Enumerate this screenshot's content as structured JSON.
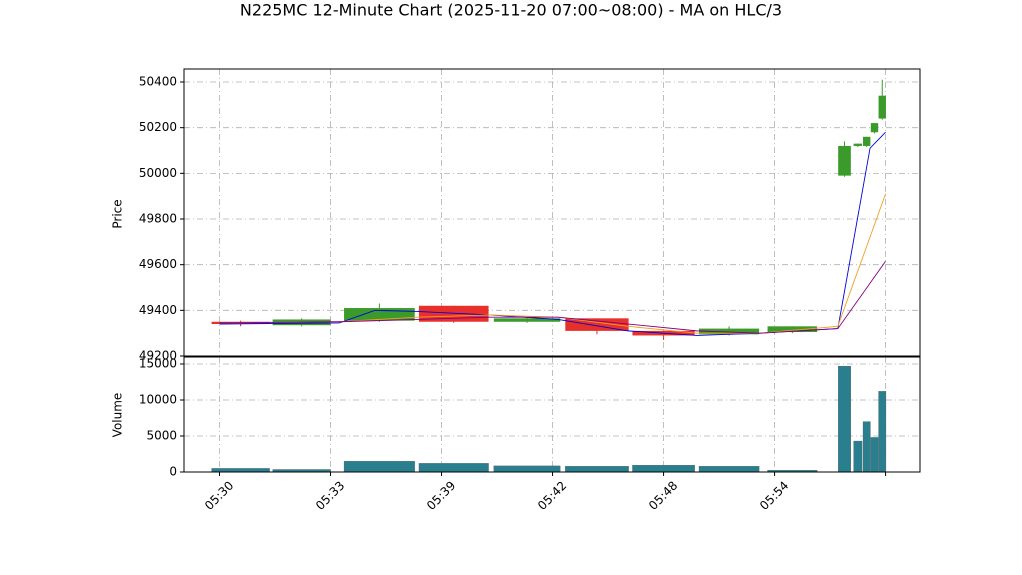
{
  "chart_data": {
    "type": "candlestick",
    "title": "N225MC 12-Minute Chart (2025-11-20 07:00~08:00) - MA on HLC/3",
    "ylabel": "Price",
    "volume_label": "Volume",
    "up_color": "#3a9a2a",
    "down_color": "#e8302a",
    "volume_color": "#2a7f8f",
    "grid": true,
    "xlim": [
      -0.32,
      6.31
    ],
    "xticks": [
      {
        "value": 0,
        "label": "05:30"
      },
      {
        "value": 1,
        "label": "05:33"
      },
      {
        "value": 2,
        "label": "05:39"
      },
      {
        "value": 3,
        "label": "05:42"
      },
      {
        "value": 4,
        "label": "05:48"
      },
      {
        "value": 5,
        "label": "05:54"
      },
      {
        "value": 6,
        "label": null
      }
    ],
    "ylim": [
      49200,
      50457
    ],
    "yticks": [
      49200,
      49400,
      49600,
      49800,
      50000,
      50200,
      50400
    ],
    "volume_ylim": [
      0,
      15970
    ],
    "volume_yticks": [
      0,
      5000,
      10000,
      15000
    ],
    "x": [
      0.19,
      0.74,
      1.44,
      2.11,
      2.77,
      3.4,
      4.0,
      4.59,
      5.16,
      5.63,
      5.75,
      5.83,
      5.9,
      5.97
    ],
    "open": [
      49350,
      49335,
      49355,
      49420,
      49350,
      49365,
      49310,
      49295,
      49305,
      49990,
      50120,
      50120,
      50180,
      50240
    ],
    "high": [
      49355,
      49365,
      49430,
      49420,
      49370,
      49365,
      49310,
      49330,
      49330,
      50140,
      50130,
      50160,
      50220,
      50410
    ],
    "low": [
      49330,
      49330,
      49350,
      49345,
      49345,
      49295,
      49270,
      49290,
      49300,
      49985,
      50115,
      50115,
      50175,
      50235
    ],
    "close": [
      49340,
      49360,
      49410,
      49350,
      49365,
      49310,
      49290,
      49320,
      49330,
      50120,
      50130,
      50160,
      50220,
      50340
    ],
    "volume": [
      500,
      350,
      1500,
      1200,
      850,
      800,
      950,
      800,
      250,
      14700,
      4300,
      7000,
      4800,
      11200
    ],
    "series": [
      {
        "color": "#0000dd",
        "x": [
          0,
          1.08,
          1.4,
          1.78,
          2.43,
          3.05,
          3.68,
          4.3,
          4.87,
          5.57,
          5.86,
          6.0
        ],
        "values": [
          49340,
          49345,
          49400,
          49395,
          49380,
          49360,
          49310,
          49290,
          49300,
          49320,
          50110,
          50180
        ]
      },
      {
        "color": "#f0a020",
        "x": [
          0,
          1.08,
          1.78,
          2.43,
          3.05,
          3.68,
          4.3,
          4.87,
          5.57,
          6.0
        ],
        "values": [
          49345,
          49350,
          49370,
          49380,
          49370,
          49330,
          49300,
          49300,
          49330,
          49910
        ]
      },
      {
        "color": "#800080",
        "x": [
          0,
          1.08,
          1.78,
          2.43,
          3.05,
          3.68,
          4.3,
          4.87,
          5.57,
          6.0
        ],
        "values": [
          49345,
          49350,
          49360,
          49370,
          49370,
          49340,
          49310,
          49300,
          49320,
          49615
        ]
      }
    ]
  }
}
